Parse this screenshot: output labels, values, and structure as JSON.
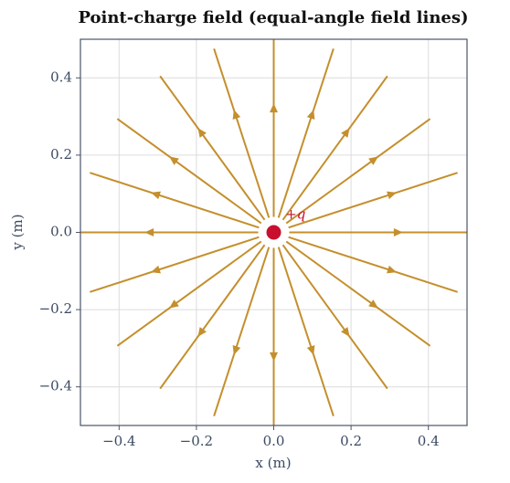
{
  "chart_data": {
    "type": "field-lines",
    "title": "Point-charge field (equal-angle field lines)",
    "x_label": "x (m)",
    "y_label": "y (m)",
    "xlim": [
      -0.5,
      0.5
    ],
    "ylim": [
      -0.5,
      0.5
    ],
    "xticks": [
      {
        "value": -0.4,
        "label": "−0.4"
      },
      {
        "value": -0.2,
        "label": "−0.2"
      },
      {
        "value": 0,
        "label": "0.0"
      },
      0.2,
      0.4
    ],
    "yticks": [
      {
        "value": -0.4,
        "label": "−0.4"
      },
      {
        "value": -0.2,
        "label": "−0.2"
      },
      {
        "value": 0,
        "label": "0.0"
      },
      0.2,
      0.4
    ],
    "grid": true,
    "field_lines": {
      "color": "#c48f2c",
      "angles": [
        0,
        18,
        36,
        54,
        72,
        90,
        108,
        126,
        144,
        162,
        180,
        198,
        216,
        234,
        252,
        270,
        288,
        306,
        324,
        342
      ],
      "r_start": 0.04,
      "r_end": 0.5,
      "arrow_r": 0.32
    },
    "charge": {
      "x": 0,
      "y": 0,
      "label": "+q",
      "label_x": 0.03,
      "label_y": 0.045,
      "color": "#c8102e"
    }
  }
}
